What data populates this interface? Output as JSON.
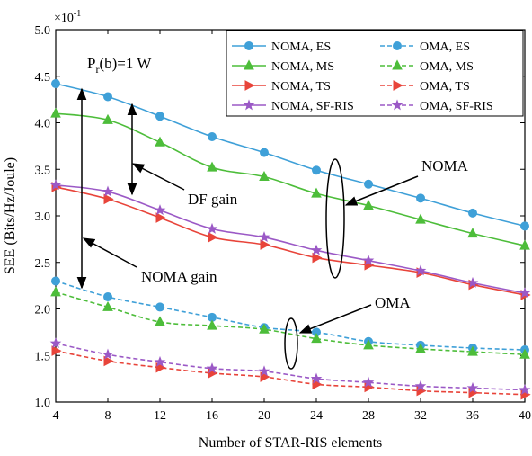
{
  "chart_data": {
    "type": "line",
    "title": "",
    "xlabel": "Number of STAR-RIS elements",
    "ylabel": "SEE (Bits/Hz/Joule)",
    "y_multiplier": "×10",
    "y_multiplier_exp": "-1",
    "xlim": [
      4,
      40
    ],
    "ylim": [
      1.0,
      5.0
    ],
    "x_ticks": [
      4,
      8,
      12,
      16,
      20,
      24,
      28,
      32,
      36,
      40
    ],
    "x_tick_labels": [
      "4",
      "8",
      "12",
      "16",
      "20",
      "24",
      "28",
      "32",
      "36",
      "40"
    ],
    "y_ticks": [
      1.0,
      1.5,
      2.0,
      2.5,
      3.0,
      3.5,
      4.0,
      4.5,
      5.0
    ],
    "y_tick_labels": [
      "1.0",
      "1.5",
      "2.0",
      "2.5",
      "3.0",
      "3.5",
      "4.0",
      "4.5",
      "5.0"
    ],
    "grid": false,
    "legend_position": "top-right",
    "x": [
      4,
      8,
      12,
      16,
      20,
      24,
      28,
      32,
      36,
      40
    ],
    "series": [
      {
        "name": "NOMA, ES",
        "color": "#3fa0d8",
        "marker": "circle",
        "dash": "solid",
        "values": [
          4.42,
          4.28,
          4.07,
          3.85,
          3.68,
          3.49,
          3.34,
          3.19,
          3.03,
          2.89
        ]
      },
      {
        "name": "OMA, ES",
        "color": "#3fa0d8",
        "marker": "circle",
        "dash": "dashed",
        "values": [
          2.3,
          2.13,
          2.02,
          1.91,
          1.8,
          1.75,
          1.65,
          1.61,
          1.58,
          1.56
        ]
      },
      {
        "name": "NOMA, MS",
        "color": "#4dbd3a",
        "marker": "triangle-up",
        "dash": "solid",
        "values": [
          4.1,
          4.03,
          3.79,
          3.52,
          3.42,
          3.24,
          3.11,
          2.96,
          2.81,
          2.68
        ]
      },
      {
        "name": "OMA, MS",
        "color": "#4dbd3a",
        "marker": "triangle-up",
        "dash": "dashed",
        "values": [
          2.18,
          2.02,
          1.86,
          1.82,
          1.78,
          1.68,
          1.61,
          1.57,
          1.54,
          1.51
        ]
      },
      {
        "name": "NOMA, TS",
        "color": "#e8443a",
        "marker": "triangle-right",
        "dash": "solid",
        "values": [
          3.31,
          3.18,
          2.98,
          2.77,
          2.69,
          2.55,
          2.47,
          2.39,
          2.26,
          2.15
        ]
      },
      {
        "name": "OMA, TS",
        "color": "#e8443a",
        "marker": "triangle-right",
        "dash": "dashed",
        "values": [
          1.55,
          1.44,
          1.37,
          1.31,
          1.27,
          1.19,
          1.16,
          1.12,
          1.1,
          1.08
        ]
      },
      {
        "name": "NOMA, SF-RIS",
        "color": "#9b59c6",
        "marker": "star",
        "dash": "solid",
        "values": [
          3.33,
          3.26,
          3.06,
          2.86,
          2.77,
          2.63,
          2.52,
          2.41,
          2.28,
          2.17
        ]
      },
      {
        "name": "OMA, SF-RIS",
        "color": "#9b59c6",
        "marker": "star",
        "dash": "dashed",
        "values": [
          1.63,
          1.51,
          1.43,
          1.36,
          1.33,
          1.25,
          1.21,
          1.17,
          1.15,
          1.13
        ]
      }
    ],
    "annotations": {
      "power": "P",
      "power_sub": "r",
      "power_rest": "(b)=1 W",
      "df_gain": "DF gain",
      "noma_gain": "NOMA gain",
      "noma": "NOMA",
      "oma": "OMA"
    }
  }
}
